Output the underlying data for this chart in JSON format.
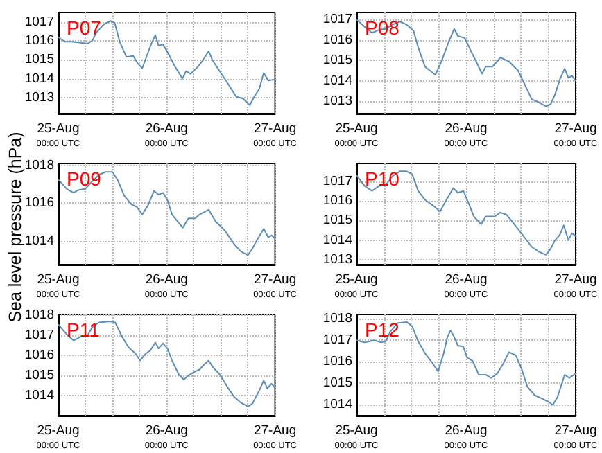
{
  "chart_data": [
    {
      "type": "line",
      "title": "P07",
      "grid": true,
      "ylim": [
        1012.15,
        1017.5
      ],
      "yticks": [
        1013,
        1014,
        1015,
        1016,
        1017
      ],
      "xlim": [
        "--08-25T00:00",
        "--08-27T00:00"
      ],
      "xticks": [
        {
          "value": "--08-25T00:00",
          "label": "25-Aug\n00:00 UTC"
        },
        {
          "value": "--08-25T06:00",
          "label": null
        },
        {
          "value": "--08-25T12:00",
          "label": null
        },
        {
          "value": "--08-25T18:00",
          "label": null
        },
        {
          "value": "--08-26T00:00",
          "label": "26-Aug\n00:00 UTC"
        },
        {
          "value": "--08-26T06:00",
          "label": null
        },
        {
          "value": "--08-26T12:00",
          "label": null
        },
        {
          "value": "--08-26T18:00",
          "label": null
        },
        {
          "value": "--08-27T00:00",
          "label": "27-Aug\n00:00 UTC"
        }
      ],
      "x": [
        "--08-25T00:00",
        "--08-25T01:30",
        "--08-25T03:00",
        "--08-25T05:00",
        "--08-25T06:30",
        "--08-25T07:30",
        "--08-25T08:30",
        "--08-25T10:00",
        "--08-25T11:30",
        "--08-25T12:30",
        "--08-25T13:36",
        "--08-25T15:06",
        "--08-25T16:36",
        "--08-25T17:36",
        "--08-25T18:36",
        "--08-25T19:36",
        "--08-25T20:42",
        "--08-25T21:30",
        "--08-25T22:12",
        "--08-25T23:12",
        "--08-26T00:12",
        "--08-26T01:42",
        "--08-26T03:30",
        "--08-26T04:18",
        "--08-26T05:18",
        "--08-26T06:48",
        "--08-26T07:48",
        "--08-26T09:18",
        "--08-26T10:06",
        "--08-26T11:18",
        "--08-26T13:24",
        "--08-26T15:24",
        "--08-26T16:54",
        "--08-26T18:24",
        "--08-26T19:24",
        "--08-26T20:30",
        "--08-26T21:30",
        "--08-26T22:30",
        "--08-27T00:00"
      ],
      "series": [
        {
          "color": "#5b8db8",
          "values": [
            1016.2,
            1015.95,
            1015.95,
            1015.9,
            1015.85,
            1016.0,
            1016.45,
            1016.85,
            1017.05,
            1016.95,
            1015.95,
            1015.15,
            1015.2,
            1014.8,
            1014.55,
            1015.2,
            1015.9,
            1016.3,
            1015.75,
            1015.8,
            1015.4,
            1014.7,
            1014.0,
            1014.4,
            1014.25,
            1014.6,
            1014.9,
            1015.45,
            1015.0,
            1014.55,
            1013.8,
            1013.05,
            1012.95,
            1012.6,
            1013.05,
            1013.45,
            1014.3,
            1013.9,
            1013.95
          ]
        }
      ]
    },
    {
      "type": "line",
      "title": "P08",
      "grid": true,
      "ylim": [
        1012.4,
        1017.35
      ],
      "yticks": [
        1013,
        1014,
        1015,
        1016,
        1017
      ],
      "xlim": [
        "--08-25T00:00",
        "--08-27T00:00"
      ],
      "xticks": [
        {
          "value": "--08-25T00:00",
          "label": "25-Aug\n00:00 UTC"
        },
        {
          "value": "--08-25T06:00",
          "label": null
        },
        {
          "value": "--08-25T12:00",
          "label": null
        },
        {
          "value": "--08-25T18:00",
          "label": null
        },
        {
          "value": "--08-26T00:00",
          "label": "26-Aug\n00:00 UTC"
        },
        {
          "value": "--08-26T06:00",
          "label": null
        },
        {
          "value": "--08-26T12:00",
          "label": null
        },
        {
          "value": "--08-26T18:00",
          "label": null
        },
        {
          "value": "--08-27T00:00",
          "label": "27-Aug\n00:00 UTC"
        }
      ],
      "x": [
        "--08-25T00:00",
        "--08-25T01:48",
        "--08-25T03:24",
        "--08-25T04:54",
        "--08-25T06:24",
        "--08-25T07:54",
        "--08-25T09:30",
        "--08-25T11:00",
        "--08-25T12:30",
        "--08-25T13:30",
        "--08-25T15:00",
        "--08-25T16:06",
        "--08-25T17:18",
        "--08-25T18:36",
        "--08-25T20:06",
        "--08-25T21:24",
        "--08-25T22:12",
        "--08-25T23:42",
        "--08-26T01:12",
        "--08-26T02:12",
        "--08-26T03:30",
        "--08-26T04:18",
        "--08-26T05:48",
        "--08-26T06:48",
        "--08-26T07:30",
        "--08-26T09:24",
        "--08-26T11:24",
        "--08-26T12:54",
        "--08-26T14:24",
        "--08-26T16:00",
        "--08-26T17:30",
        "--08-26T18:30",
        "--08-26T19:30",
        "--08-26T20:30",
        "--08-26T21:36",
        "--08-26T22:24",
        "--08-26T23:12",
        "--08-27T00:00"
      ],
      "series": [
        {
          "color": "#5b8db8",
          "values": [
            1017.0,
            1016.65,
            1016.35,
            1016.5,
            1016.55,
            1016.75,
            1016.9,
            1016.75,
            1016.45,
            1015.65,
            1014.7,
            1014.5,
            1014.3,
            1014.95,
            1015.85,
            1016.55,
            1016.2,
            1016.1,
            1015.4,
            1014.95,
            1014.35,
            1014.7,
            1014.7,
            1014.95,
            1015.15,
            1014.95,
            1014.5,
            1013.8,
            1013.1,
            1012.95,
            1012.75,
            1012.85,
            1013.35,
            1014.05,
            1014.6,
            1014.15,
            1014.25,
            1014.0
          ]
        }
      ]
    },
    {
      "type": "line",
      "title": "P09",
      "ylabel": "Sea level pressure (hPa)",
      "grid": true,
      "ylim": [
        1012.75,
        1018.1
      ],
      "yticks": [
        1014,
        1016,
        1018
      ],
      "xlim": [
        "--08-25T00:00",
        "--08-27T00:00"
      ],
      "xticks": [
        {
          "value": "--08-25T00:00",
          "label": "25-Aug\n00:00 UTC"
        },
        {
          "value": "--08-25T06:00",
          "label": null
        },
        {
          "value": "--08-25T12:00",
          "label": null
        },
        {
          "value": "--08-25T18:00",
          "label": null
        },
        {
          "value": "--08-26T00:00",
          "label": "26-Aug\n00:00 UTC"
        },
        {
          "value": "--08-26T06:00",
          "label": null
        },
        {
          "value": "--08-26T12:00",
          "label": null
        },
        {
          "value": "--08-26T18:00",
          "label": null
        },
        {
          "value": "--08-27T00:00",
          "label": "27-Aug\n00:00 UTC"
        }
      ],
      "x": [
        "--08-25T00:00",
        "--08-25T01:54",
        "--08-25T03:24",
        "--08-25T04:30",
        "--08-25T06:00",
        "--08-25T07:30",
        "--08-25T09:00",
        "--08-25T10:30",
        "--08-25T12:00",
        "--08-25T13:06",
        "--08-25T14:36",
        "--08-25T16:06",
        "--08-25T17:24",
        "--08-25T18:36",
        "--08-25T19:54",
        "--08-25T21:12",
        "--08-25T22:12",
        "--08-25T23:12",
        "--08-26T00:12",
        "--08-26T01:12",
        "--08-26T02:42",
        "--08-26T03:36",
        "--08-26T04:48",
        "--08-26T06:18",
        "--08-26T07:18",
        "--08-26T09:18",
        "--08-26T10:48",
        "--08-26T12:54",
        "--08-26T14:54",
        "--08-26T16:24",
        "--08-26T18:00",
        "--08-26T19:00",
        "--08-26T20:00",
        "--08-26T21:30",
        "--08-26T22:30",
        "--08-26T23:18",
        "--08-27T00:00"
      ],
      "series": [
        {
          "color": "#5b8db8",
          "values": [
            1017.25,
            1016.75,
            1016.55,
            1016.7,
            1016.75,
            1017.15,
            1017.5,
            1017.65,
            1017.65,
            1017.25,
            1016.4,
            1015.95,
            1015.8,
            1015.4,
            1015.9,
            1016.65,
            1016.45,
            1016.55,
            1016.15,
            1015.4,
            1014.95,
            1014.7,
            1015.2,
            1015.2,
            1015.4,
            1015.65,
            1015.05,
            1014.55,
            1013.85,
            1013.45,
            1013.25,
            1013.6,
            1014.05,
            1014.65,
            1014.2,
            1014.3,
            1014.1
          ]
        }
      ]
    },
    {
      "type": "line",
      "title": "P10",
      "grid": true,
      "ylim": [
        1012.75,
        1017.9
      ],
      "yticks": [
        1013,
        1014,
        1015,
        1016,
        1017
      ],
      "xlim": [
        "--08-25T00:00",
        "--08-27T00:00"
      ],
      "xticks": [
        {
          "value": "--08-25T00:00",
          "label": "25-Aug\n00:00 UTC"
        },
        {
          "value": "--08-25T06:00",
          "label": null
        },
        {
          "value": "--08-25T12:00",
          "label": null
        },
        {
          "value": "--08-25T18:00",
          "label": null
        },
        {
          "value": "--08-26T00:00",
          "label": "26-Aug\n00:00 UTC"
        },
        {
          "value": "--08-26T06:00",
          "label": null
        },
        {
          "value": "--08-26T12:00",
          "label": null
        },
        {
          "value": "--08-26T18:00",
          "label": null
        },
        {
          "value": "--08-27T00:00",
          "label": "27-Aug\n00:00 UTC"
        }
      ],
      "x": [
        "--08-25T00:00",
        "--08-25T01:48",
        "--08-25T03:24",
        "--08-25T04:54",
        "--08-25T06:24",
        "--08-25T07:54",
        "--08-25T09:30",
        "--08-25T11:00",
        "--08-25T12:12",
        "--08-25T13:30",
        "--08-25T15:00",
        "--08-25T17:06",
        "--08-25T18:18",
        "--08-25T19:42",
        "--08-25T21:12",
        "--08-25T22:12",
        "--08-25T23:24",
        "--08-26T00:42",
        "--08-26T01:42",
        "--08-26T03:18",
        "--08-26T04:18",
        "--08-26T06:18",
        "--08-26T07:30",
        "--08-26T08:48",
        "--08-26T10:24",
        "--08-26T12:24",
        "--08-26T14:24",
        "--08-26T16:00",
        "--08-26T17:30",
        "--08-26T18:30",
        "--08-26T19:30",
        "--08-26T20:30",
        "--08-26T21:24",
        "--08-26T22:24",
        "--08-26T23:12",
        "--08-27T00:00"
      ],
      "series": [
        {
          "color": "#5b8db8",
          "values": [
            1017.3,
            1016.75,
            1016.5,
            1016.75,
            1016.8,
            1017.25,
            1017.5,
            1017.5,
            1017.35,
            1016.5,
            1016.05,
            1015.7,
            1015.45,
            1016.05,
            1016.65,
            1016.4,
            1016.5,
            1015.8,
            1015.2,
            1014.8,
            1015.2,
            1015.2,
            1015.4,
            1015.3,
            1014.85,
            1014.25,
            1013.65,
            1013.4,
            1013.25,
            1013.55,
            1014.0,
            1014.25,
            1014.75,
            1014.0,
            1014.35,
            1014.2
          ]
        }
      ]
    },
    {
      "type": "line",
      "title": "P11",
      "grid": true,
      "ylim": [
        1013.0,
        1018.05
      ],
      "yticks": [
        1014,
        1015,
        1016,
        1017,
        1018
      ],
      "xlim": [
        "--08-25T00:00",
        "--08-27T00:00"
      ],
      "xticks": [
        {
          "value": "--08-25T00:00",
          "label": "25-Aug\n00:00 UTC"
        },
        {
          "value": "--08-25T06:00",
          "label": null
        },
        {
          "value": "--08-25T12:00",
          "label": null
        },
        {
          "value": "--08-25T18:00",
          "label": null
        },
        {
          "value": "--08-26T00:00",
          "label": "26-Aug\n00:00 UTC"
        },
        {
          "value": "--08-26T06:00",
          "label": null
        },
        {
          "value": "--08-26T12:00",
          "label": null
        },
        {
          "value": "--08-26T18:00",
          "label": null
        },
        {
          "value": "--08-27T00:00",
          "label": "27-Aug\n00:00 UTC"
        }
      ],
      "x": [
        "--08-25T00:00",
        "--08-25T01:54",
        "--08-25T03:24",
        "--08-25T05:00",
        "--08-25T06:30",
        "--08-25T07:30",
        "--08-25T09:00",
        "--08-25T11:30",
        "--08-25T12:36",
        "--08-25T14:06",
        "--08-25T15:36",
        "--08-25T17:06",
        "--08-25T18:06",
        "--08-25T19:24",
        "--08-25T20:24",
        "--08-25T21:30",
        "--08-25T22:12",
        "--08-25T23:12",
        "--08-26T00:12",
        "--08-26T01:12",
        "--08-26T02:42",
        "--08-26T03:48",
        "--08-26T04:48",
        "--08-26T06:18",
        "--08-26T07:18",
        "--08-26T08:18",
        "--08-26T09:18",
        "--08-26T10:18",
        "--08-26T11:48",
        "--08-26T13:24",
        "--08-26T14:54",
        "--08-26T16:24",
        "--08-26T18:00",
        "--08-26T19:00",
        "--08-26T20:30",
        "--08-26T21:30",
        "--08-26T22:18",
        "--08-26T23:12",
        "--08-27T00:00"
      ],
      "series": [
        {
          "color": "#5b8db8",
          "values": [
            1017.55,
            1017.05,
            1016.75,
            1016.95,
            1017.0,
            1017.4,
            1017.65,
            1017.7,
            1017.65,
            1016.95,
            1016.4,
            1016.1,
            1015.75,
            1016.1,
            1016.25,
            1016.65,
            1016.35,
            1016.6,
            1016.35,
            1015.75,
            1015.05,
            1014.8,
            1015.0,
            1015.2,
            1015.3,
            1015.55,
            1015.75,
            1015.4,
            1015.05,
            1014.45,
            1013.95,
            1013.65,
            1013.45,
            1013.6,
            1014.25,
            1014.75,
            1014.35,
            1014.6,
            1014.4
          ]
        }
      ]
    },
    {
      "type": "line",
      "title": "P12",
      "grid": true,
      "ylim": [
        1013.5,
        1018.2
      ],
      "yticks": [
        1014,
        1015,
        1016,
        1017,
        1018
      ],
      "xlim": [
        "--08-25T00:00",
        "--08-27T00:00"
      ],
      "xticks": [
        {
          "value": "--08-25T00:00",
          "label": "25-Aug\n00:00 UTC"
        },
        {
          "value": "--08-25T06:00",
          "label": null
        },
        {
          "value": "--08-25T12:00",
          "label": null
        },
        {
          "value": "--08-25T18:00",
          "label": null
        },
        {
          "value": "--08-26T00:00",
          "label": "26-Aug\n00:00 UTC"
        },
        {
          "value": "--08-26T06:00",
          "label": null
        },
        {
          "value": "--08-26T12:00",
          "label": null
        },
        {
          "value": "--08-26T18:00",
          "label": null
        },
        {
          "value": "--08-27T00:00",
          "label": "27-Aug\n00:00 UTC"
        }
      ],
      "x": [
        "--08-25T00:00",
        "--08-25T01:48",
        "--08-25T03:54",
        "--08-25T05:24",
        "--08-25T06:24",
        "--08-25T07:24",
        "--08-25T09:00",
        "--08-25T11:00",
        "--08-25T12:12",
        "--08-25T13:30",
        "--08-25T15:00",
        "--08-25T16:36",
        "--08-25T17:54",
        "--08-25T19:06",
        "--08-25T19:54",
        "--08-25T20:36",
        "--08-25T21:24",
        "--08-25T22:12",
        "--08-25T23:24",
        "--08-26T00:12",
        "--08-26T01:24",
        "--08-26T02:48",
        "--08-26T04:18",
        "--08-26T05:30",
        "--08-26T06:48",
        "--08-26T08:06",
        "--08-26T09:24",
        "--08-26T10:54",
        "--08-26T12:12",
        "--08-26T13:24",
        "--08-26T15:00",
        "--08-26T16:30",
        "--08-26T18:00",
        "--08-26T19:00",
        "--08-26T20:00",
        "--08-26T21:36",
        "--08-26T22:36",
        "--08-27T00:00"
      ],
      "series": [
        {
          "color": "#5b8db8",
          "values": [
            1017.0,
            1016.9,
            1017.0,
            1016.9,
            1016.95,
            1017.4,
            1017.8,
            1017.85,
            1017.65,
            1016.95,
            1016.4,
            1015.95,
            1015.55,
            1016.4,
            1017.15,
            1017.45,
            1017.15,
            1016.75,
            1016.7,
            1016.2,
            1016.05,
            1015.4,
            1015.4,
            1015.25,
            1015.45,
            1015.9,
            1016.45,
            1016.3,
            1015.65,
            1014.85,
            1014.45,
            1014.3,
            1014.15,
            1014.0,
            1014.35,
            1015.4,
            1015.25,
            1015.45
          ]
        }
      ]
    }
  ]
}
